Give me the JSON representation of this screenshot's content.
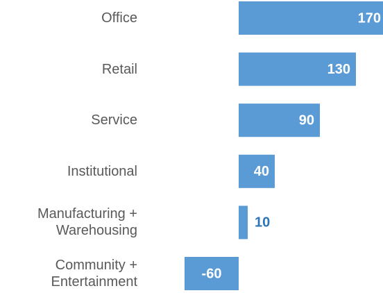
{
  "chart_data": {
    "type": "bar",
    "orientation": "horizontal",
    "categories": [
      "Office",
      "Retail",
      "Service",
      "Institutional",
      "Manufacturing + Warehousing",
      "Community + Entertainment"
    ],
    "values": [
      170,
      130,
      90,
      40,
      10,
      -60
    ],
    "color": "#5b9bd5"
  }
}
